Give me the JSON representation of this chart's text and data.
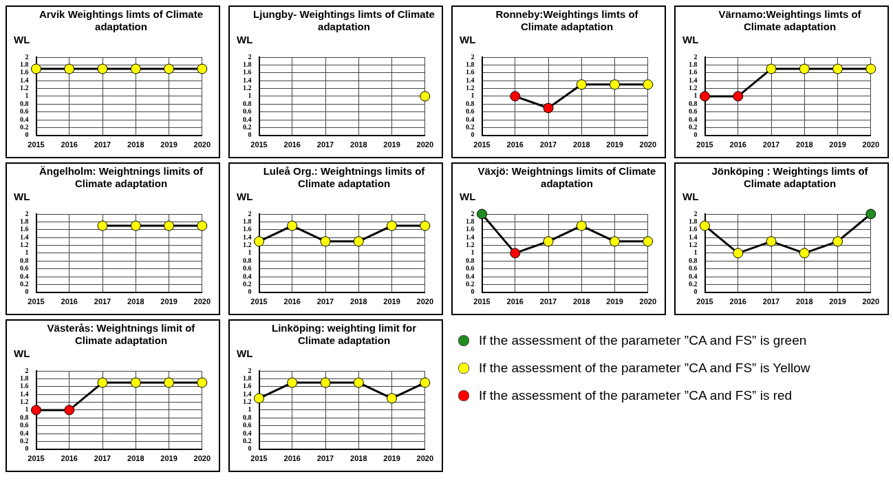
{
  "chart_data": [
    {
      "type": "line",
      "title": "Arvik Weightings limts of Climate adaptation",
      "ylabel": "WL",
      "categories": [
        "2015",
        "2016",
        "2017",
        "2018",
        "2019",
        "2020"
      ],
      "series": [
        {
          "color": "#000000",
          "colors": [
            "#ffff00",
            "#ffff00",
            "#ffff00",
            "#ffff00",
            "#ffff00",
            "#ffff00"
          ],
          "values": [
            1.7,
            1.7,
            1.7,
            1.7,
            1.7,
            1.7
          ]
        }
      ],
      "ylim": [
        0,
        2
      ],
      "yticks": [
        0,
        0.2,
        0.4,
        0.6,
        0.8,
        1,
        1.2,
        1.4,
        1.6,
        1.8,
        2
      ],
      "grid": true,
      "marker": "circle"
    },
    {
      "type": "line",
      "title": "Ljungby- Weightings limts of Climate adaptation",
      "ylabel": "WL",
      "categories": [
        "2015",
        "2016",
        "2017",
        "2018",
        "2019",
        "2020"
      ],
      "series": [
        {
          "color": "#000000",
          "colors": [
            null,
            null,
            null,
            null,
            null,
            "#ffff00"
          ],
          "values": [
            null,
            null,
            null,
            null,
            null,
            1
          ]
        }
      ],
      "ylim": [
        0,
        2
      ],
      "yticks": [
        0,
        0.2,
        0.4,
        0.6,
        0.8,
        1,
        1.2,
        1.4,
        1.6,
        1.8,
        2
      ],
      "grid": true,
      "marker": "circle"
    },
    {
      "type": "line",
      "title": "Ronneby:Weightings limts of Climate adaptation",
      "ylabel": "WL",
      "categories": [
        "2015",
        "2016",
        "2017",
        "2018",
        "2019",
        "2020"
      ],
      "series": [
        {
          "color": "#000000",
          "colors": [
            null,
            "#ff0000",
            "#ff0000",
            "#ffff00",
            "#ffff00",
            "#ffff00"
          ],
          "values": [
            null,
            1,
            0.7,
            1.3,
            1.3,
            1.3
          ]
        }
      ],
      "ylim": [
        0,
        2
      ],
      "yticks": [
        0,
        0.2,
        0.4,
        0.6,
        0.8,
        1,
        1.2,
        1.4,
        1.6,
        1.8,
        2
      ],
      "grid": true,
      "marker": "circle"
    },
    {
      "type": "line",
      "title": "Värnamo:Weightings limts of Climate adaptation",
      "ylabel": "WL",
      "categories": [
        "2015",
        "2016",
        "2017",
        "2018",
        "2019",
        "2020"
      ],
      "series": [
        {
          "color": "#000000",
          "colors": [
            "#ff0000",
            "#ff0000",
            "#ffff00",
            "#ffff00",
            "#ffff00",
            "#ffff00"
          ],
          "values": [
            1,
            1,
            1.7,
            1.7,
            1.7,
            1.7
          ]
        }
      ],
      "ylim": [
        0,
        2
      ],
      "yticks": [
        0,
        0.2,
        0.4,
        0.6,
        0.8,
        1,
        1.2,
        1.4,
        1.6,
        1.8,
        2
      ],
      "grid": true,
      "marker": "circle"
    },
    {
      "type": "line",
      "title": "Ängelholm: Weightnings limits of Climate adaptation",
      "ylabel": "WL",
      "categories": [
        "2015",
        "2016",
        "2017",
        "2018",
        "2019",
        "2020"
      ],
      "series": [
        {
          "color": "#000000",
          "colors": [
            null,
            null,
            "#ffff00",
            "#ffff00",
            "#ffff00",
            "#ffff00"
          ],
          "values": [
            null,
            null,
            1.7,
            1.7,
            1.7,
            1.7
          ]
        }
      ],
      "ylim": [
        0,
        2
      ],
      "yticks": [
        0,
        0.2,
        0.4,
        0.6,
        0.8,
        1,
        1.2,
        1.4,
        1.6,
        1.8,
        2
      ],
      "grid": true,
      "marker": "circle"
    },
    {
      "type": "line",
      "title": "Luleå Org.: Weightnings limits of Climate adaptation",
      "ylabel": "WL",
      "categories": [
        "2015",
        "2016",
        "2017",
        "2018",
        "2019",
        "2020"
      ],
      "series": [
        {
          "color": "#000000",
          "colors": [
            "#ffff00",
            "#ffff00",
            "#ffff00",
            "#ffff00",
            "#ffff00",
            "#ffff00"
          ],
          "values": [
            1.3,
            1.7,
            1.3,
            1.3,
            1.7,
            1.7
          ]
        }
      ],
      "ylim": [
        0,
        2
      ],
      "yticks": [
        0,
        0.2,
        0.4,
        0.6,
        0.8,
        1,
        1.2,
        1.4,
        1.6,
        1.8,
        2
      ],
      "grid": true,
      "marker": "circle"
    },
    {
      "type": "line",
      "title": "Växjö: Weightnings limits of Climate adaptation",
      "ylabel": "WL",
      "categories": [
        "2015",
        "2016",
        "2017",
        "2018",
        "2019",
        "2020"
      ],
      "series": [
        {
          "color": "#000000",
          "colors": [
            "#228b22",
            "#ff0000",
            "#ffff00",
            "#ffff00",
            "#ffff00",
            "#ffff00"
          ],
          "values": [
            2,
            1,
            1.3,
            1.7,
            1.3,
            1.3
          ]
        }
      ],
      "ylim": [
        0,
        2
      ],
      "yticks": [
        0,
        0.2,
        0.4,
        0.6,
        0.8,
        1,
        1.2,
        1.4,
        1.6,
        1.8,
        2
      ],
      "grid": true,
      "marker": "circle"
    },
    {
      "type": "line",
      "title": "Jönköping : Weightings limts of Climate adaptation",
      "ylabel": "WL",
      "categories": [
        "2015",
        "2016",
        "2017",
        "2018",
        "2019",
        "2020"
      ],
      "series": [
        {
          "color": "#000000",
          "colors": [
            "#ffff00",
            "#ffff00",
            "#ffff00",
            "#ffff00",
            "#ffff00",
            "#228b22"
          ],
          "values": [
            1.7,
            1,
            1.3,
            1,
            1.3,
            2
          ]
        }
      ],
      "ylim": [
        0,
        2
      ],
      "yticks": [
        0,
        0.2,
        0.4,
        0.6,
        0.8,
        1,
        1.2,
        1.4,
        1.6,
        1.8,
        2
      ],
      "grid": true,
      "marker": "circle"
    },
    {
      "type": "line",
      "title": "Västerås: Weightnings limit of Climate adaptation",
      "ylabel": "WL",
      "categories": [
        "2015",
        "2016",
        "2017",
        "2018",
        "2019",
        "2020"
      ],
      "series": [
        {
          "color": "#000000",
          "colors": [
            "#ff0000",
            "#ff0000",
            "#ffff00",
            "#ffff00",
            "#ffff00",
            "#ffff00"
          ],
          "values": [
            1,
            1,
            1.7,
            1.7,
            1.7,
            1.7
          ]
        }
      ],
      "ylim": [
        0,
        2
      ],
      "yticks": [
        0,
        0.2,
        0.4,
        0.6,
        0.8,
        1,
        1.2,
        1.4,
        1.6,
        1.8,
        2
      ],
      "grid": true,
      "marker": "circle"
    },
    {
      "type": "line",
      "title": "Linköping: weighting limit for Climate adaptation",
      "ylabel": "WL",
      "categories": [
        "2015",
        "2016",
        "2017",
        "2018",
        "2019",
        "2020"
      ],
      "series": [
        {
          "color": "#000000",
          "colors": [
            "#ffff00",
            "#ffff00",
            "#ffff00",
            "#ffff00",
            "#ffff00",
            "#ffff00"
          ],
          "values": [
            1.3,
            1.7,
            1.7,
            1.7,
            1.3,
            1.7
          ]
        }
      ],
      "ylim": [
        0,
        2
      ],
      "yticks": [
        0,
        0.2,
        0.4,
        0.6,
        0.8,
        1,
        1.2,
        1.4,
        1.6,
        1.8,
        2
      ],
      "grid": true,
      "marker": "circle"
    },
    {
      "type": "other",
      "annotations": [
        "If the assessment of the parameter ”CA and FS” is green",
        "If the assessment of the parameter ”CA and FS” is Yellow",
        "If the assessment of the parameter ”CA and FS” is red"
      ],
      "colors": [
        "#228b22",
        "#ffff00",
        "#ff0000"
      ]
    }
  ]
}
